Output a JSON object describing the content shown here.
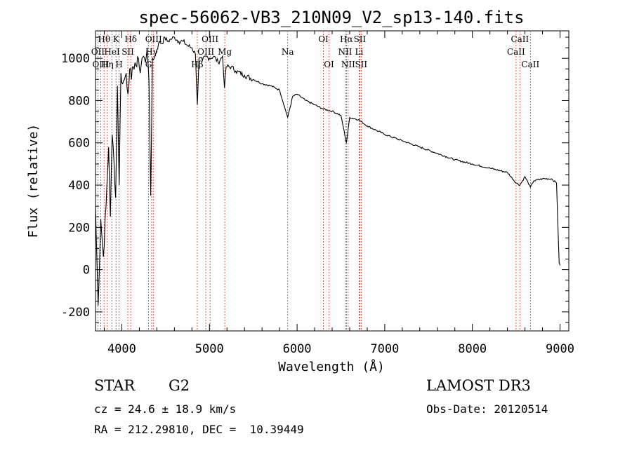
{
  "chart_data": {
    "type": "line",
    "title": "spec-56062-VB3_210N09_V2_sp13-140.fits",
    "xlabel": "Wavelength (Å)",
    "ylabel": "Flux (relative)",
    "xlim": [
      3700,
      9100
    ],
    "ylim": [
      -290,
      1130
    ],
    "xticks": [
      4000,
      5000,
      6000,
      7000,
      8000,
      9000
    ],
    "yticks": [
      -200,
      0,
      200,
      400,
      600,
      800,
      1000
    ],
    "series": [
      {
        "name": "flux",
        "x": [
          3700,
          3730,
          3760,
          3790,
          3820,
          3850,
          3870,
          3890,
          3910,
          3930,
          3950,
          3970,
          3990,
          4010,
          4030,
          4050,
          4070,
          4090,
          4110,
          4130,
          4150,
          4170,
          4190,
          4210,
          4230,
          4250,
          4270,
          4290,
          4310,
          4330,
          4350,
          4370,
          4400,
          4430,
          4460,
          4490,
          4520,
          4560,
          4600,
          4650,
          4700,
          4750,
          4800,
          4840,
          4862,
          4880,
          4920,
          4960,
          5000,
          5050,
          5100,
          5150,
          5172,
          5190,
          5250,
          5300,
          5400,
          5500,
          5600,
          5700,
          5800,
          5893,
          5950,
          6000,
          6100,
          6200,
          6300,
          6400,
          6500,
          6563,
          6600,
          6700,
          6800,
          6900,
          7000,
          7200,
          7400,
          7600,
          7800,
          8000,
          8200,
          8400,
          8498,
          8542,
          8600,
          8662,
          8700,
          8800,
          8900,
          8960,
          8990,
          9000
        ],
        "y": [
          300,
          -170,
          240,
          60,
          300,
          580,
          250,
          640,
          520,
          340,
          870,
          400,
          930,
          880,
          900,
          930,
          830,
          950,
          900,
          960,
          980,
          960,
          1000,
          930,
          1000,
          1010,
          980,
          1050,
          900,
          350,
          1000,
          1000,
          1040,
          1080,
          1070,
          1100,
          1080,
          1090,
          1100,
          1080,
          1080,
          1060,
          1050,
          1020,
          780,
          1000,
          990,
          1010,
          1000,
          1010,
          980,
          1010,
          860,
          960,
          960,
          940,
          920,
          900,
          880,
          870,
          850,
          720,
          820,
          830,
          800,
          780,
          760,
          750,
          730,
          600,
          720,
          710,
          680,
          660,
          640,
          610,
          580,
          550,
          520,
          500,
          480,
          460,
          410,
          400,
          440,
          390,
          420,
          430,
          430,
          410,
          30,
          20
        ]
      }
    ],
    "lines": [
      {
        "label": "Hθ",
        "wl": 3798,
        "row": 0
      },
      {
        "label": "Hη",
        "wl": 3835,
        "row": 2
      },
      {
        "label": "OII",
        "wl": 3727,
        "row": 1
      },
      {
        "label": "OIII",
        "wl": 3760,
        "row": 2
      },
      {
        "label": "K",
        "wl": 3934,
        "row": 0
      },
      {
        "label": "H",
        "wl": 3969,
        "row": 2
      },
      {
        "label": "HeI",
        "wl": 3889,
        "row": 1
      },
      {
        "label": "SII",
        "wl": 4069,
        "row": 1
      },
      {
        "label": "Hδ",
        "wl": 4102,
        "row": 0
      },
      {
        "label": "OIII",
        "wl": 4363,
        "row": 0
      },
      {
        "label": "Hγ",
        "wl": 4341,
        "row": 1
      },
      {
        "label": "G",
        "wl": 4305,
        "row": 2
      },
      {
        "label": "Hβ",
        "wl": 4861,
        "row": 2
      },
      {
        "label": "OIII",
        "wl": 4959,
        "row": 1
      },
      {
        "label": "OIII",
        "wl": 5007,
        "row": 0
      },
      {
        "label": "Mg",
        "wl": 5175,
        "row": 1
      },
      {
        "label": "Na",
        "wl": 5893,
        "row": 1
      },
      {
        "label": "OI",
        "wl": 6300,
        "row": 0
      },
      {
        "label": "OI",
        "wl": 6364,
        "row": 2
      },
      {
        "label": "NII",
        "wl": 6548,
        "row": 1
      },
      {
        "label": "Hα",
        "wl": 6563,
        "row": 0
      },
      {
        "label": "NII",
        "wl": 6583,
        "row": 2
      },
      {
        "label": "SII",
        "wl": 6716,
        "row": 0
      },
      {
        "label": "Li",
        "wl": 6708,
        "row": 1
      },
      {
        "label": "SII",
        "wl": 6731,
        "row": 2
      },
      {
        "label": "CaII",
        "wl": 8498,
        "row": 1
      },
      {
        "label": "CaII",
        "wl": 8542,
        "row": 0
      },
      {
        "label": "CaII",
        "wl": 8662,
        "row": 2
      }
    ]
  },
  "info": {
    "object_class": "STAR",
    "subclass": "G2",
    "survey": "LAMOST DR3",
    "redshift": "cz = 24.6 ± 18.9 km/s",
    "obs_date": "Obs-Date: 20120514",
    "coords": "RA = 212.29810, DEC =  10.39449"
  }
}
